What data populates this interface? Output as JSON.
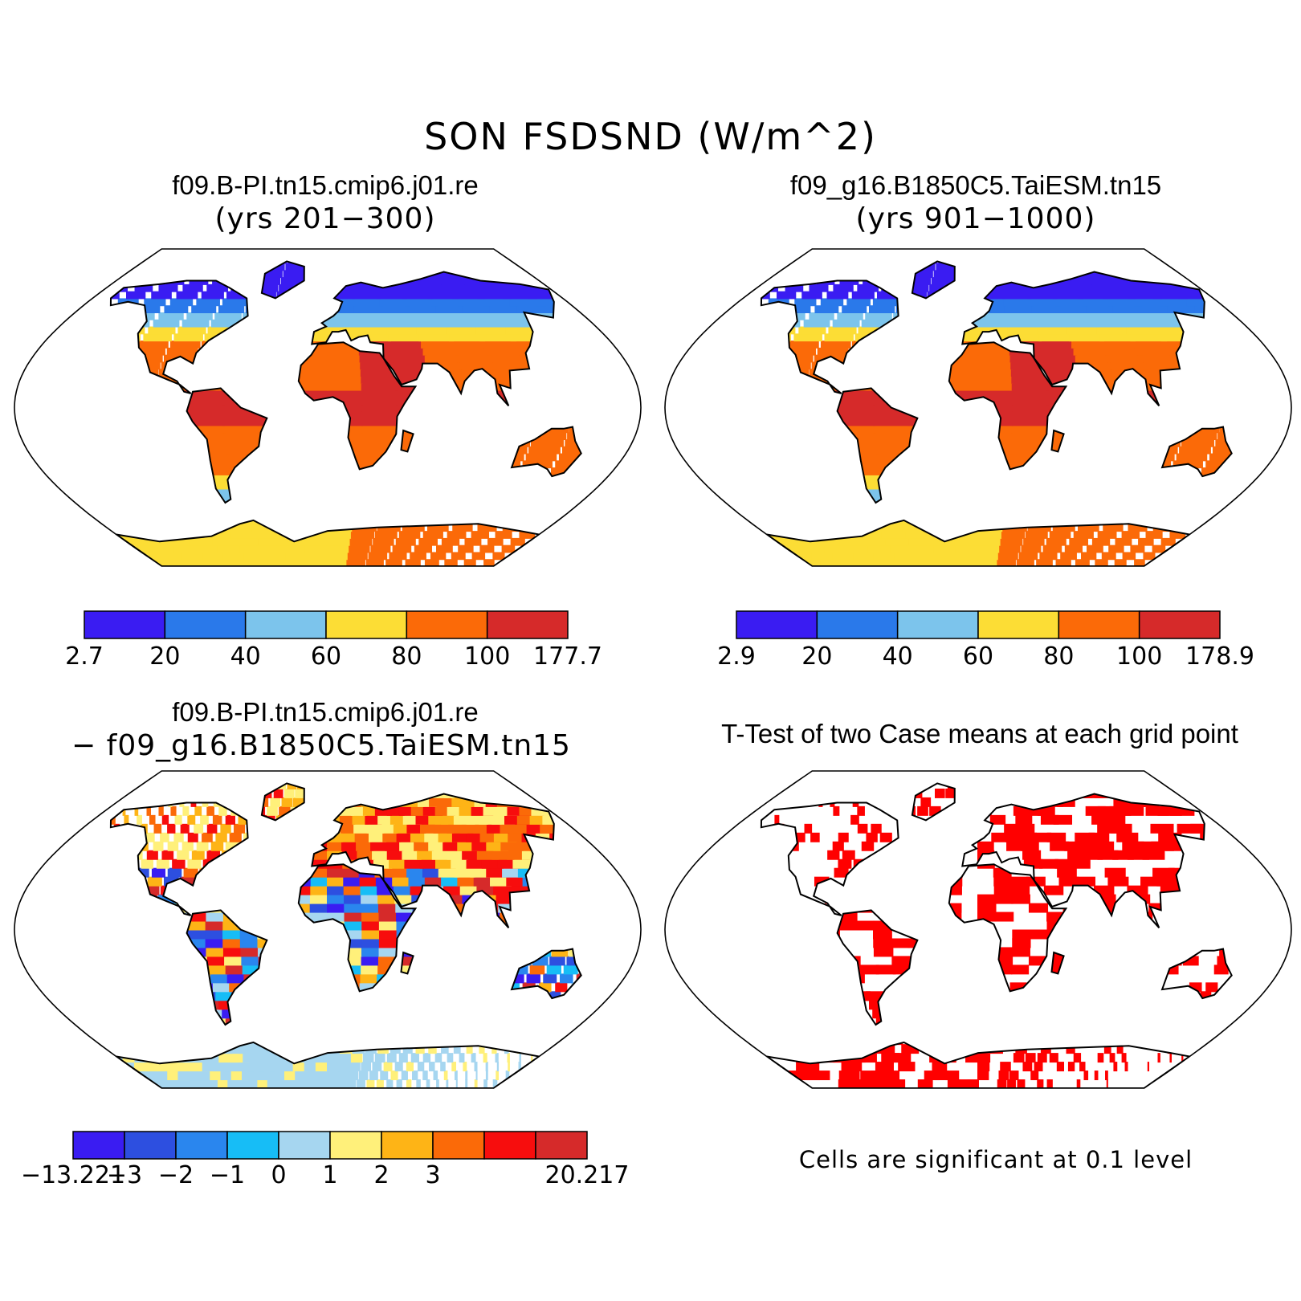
{
  "title": "SON FSDSND (W/m^2)",
  "panels": {
    "case1": {
      "title": "f09.B-PI.tn15.cmip6.j01.re",
      "subtitle": "(yrs 201−300)",
      "colorbar": {
        "colors": [
          "#3a1cf2",
          "#2a79ea",
          "#7cc4ec",
          "#fcdd35",
          "#fb6a08",
          "#d62a2a"
        ],
        "labels": [
          "2.7",
          "20",
          "40",
          "60",
          "80",
          "100",
          "177.7"
        ]
      }
    },
    "case2": {
      "title": "f09_g16.B1850C5.TaiESM.tn15",
      "subtitle": "(yrs 901−1000)",
      "colorbar": {
        "colors": [
          "#3a1cf2",
          "#2a79ea",
          "#7cc4ec",
          "#fcdd35",
          "#fb6a08",
          "#d62a2a"
        ],
        "labels": [
          "2.9",
          "20",
          "40",
          "60",
          "80",
          "100",
          "178.9"
        ]
      }
    },
    "diff": {
      "title": "f09.B-PI.tn15.cmip6.j01.re",
      "subtitle": "− f09_g16.B1850C5.TaiESM.tn15",
      "colorbar": {
        "colors": [
          "#3a1cf2",
          "#2d4fe0",
          "#2a86ee",
          "#17bdf6",
          "#a6d6f0",
          "#fff07a",
          "#feb416",
          "#fb6a08",
          "#f70d0d",
          "#d62a2a"
        ],
        "labels": [
          "−13.221",
          "−3",
          "−2",
          "−1",
          "0",
          "1",
          "2",
          "3",
          "20.217"
        ]
      }
    },
    "ttest": {
      "title": "T-Test of two Case means at each grid point",
      "note": "Cells are significant at 0.1 level",
      "color": "#ff0000"
    }
  }
}
